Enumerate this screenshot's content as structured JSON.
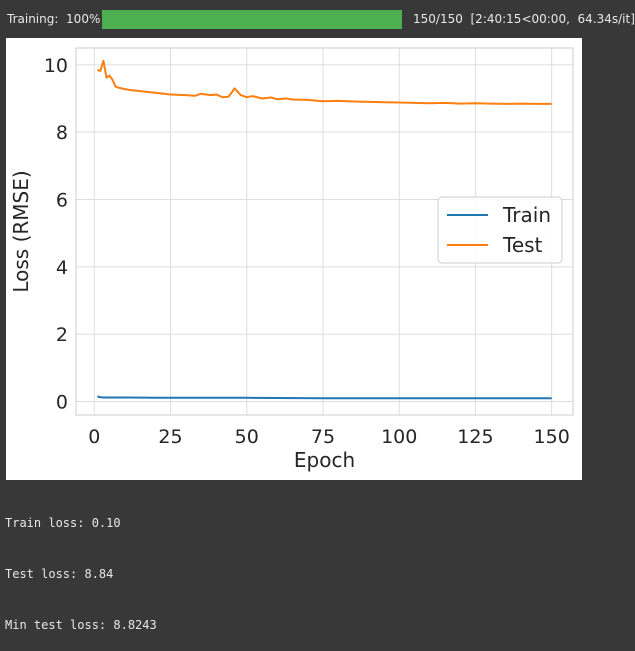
{
  "progress": {
    "prefix": "Training:",
    "percent_label": "100%",
    "fraction": 1.0,
    "count_label": "150/150",
    "timing_label": "[2:40:15<00:00,  64.34s/it]",
    "bar_color": "#4caf50"
  },
  "console": {
    "lines": [
      "Train loss: 0.10",
      "Test loss: 8.84",
      "Min test loss: 8.8243"
    ]
  },
  "chart_data": {
    "type": "line",
    "title": "",
    "xlabel": "Epoch",
    "ylabel": "Loss (RMSE)",
    "xlim": [
      -6,
      157
    ],
    "ylim": [
      -0.4,
      10.5
    ],
    "xticks": [
      0,
      25,
      50,
      75,
      100,
      125,
      150
    ],
    "yticks": [
      0,
      2,
      4,
      6,
      8,
      10
    ],
    "grid": true,
    "legend_position": "center-right",
    "series": [
      {
        "name": "Train",
        "color": "#1f77b4",
        "x": [
          1,
          2,
          3,
          5,
          10,
          20,
          30,
          50,
          75,
          100,
          125,
          150
        ],
        "y": [
          0.15,
          0.13,
          0.12,
          0.12,
          0.12,
          0.11,
          0.11,
          0.11,
          0.1,
          0.1,
          0.1,
          0.1
        ]
      },
      {
        "name": "Test",
        "color": "#ff7f0e",
        "x": [
          1,
          2,
          3,
          4,
          5,
          6,
          7,
          8,
          10,
          12,
          15,
          20,
          25,
          30,
          33,
          35,
          38,
          40,
          42,
          44,
          46,
          48,
          50,
          52,
          55,
          58,
          60,
          63,
          65,
          70,
          75,
          80,
          85,
          90,
          95,
          100,
          105,
          110,
          115,
          120,
          125,
          130,
          135,
          140,
          145,
          150
        ],
        "y": [
          9.85,
          9.82,
          10.12,
          9.62,
          9.68,
          9.55,
          9.35,
          9.32,
          9.28,
          9.25,
          9.22,
          9.17,
          9.12,
          9.1,
          9.08,
          9.14,
          9.1,
          9.12,
          9.04,
          9.05,
          9.3,
          9.1,
          9.04,
          9.07,
          9.0,
          9.03,
          8.98,
          9.0,
          8.97,
          8.96,
          8.92,
          8.93,
          8.91,
          8.9,
          8.89,
          8.88,
          8.87,
          8.86,
          8.87,
          8.85,
          8.86,
          8.85,
          8.84,
          8.85,
          8.84,
          8.84
        ]
      }
    ]
  }
}
